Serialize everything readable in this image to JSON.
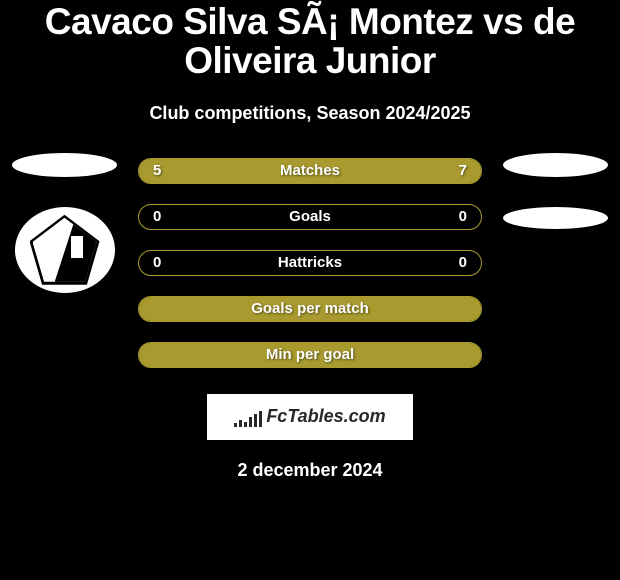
{
  "title": "Cavaco Silva SÃ¡ Montez vs de Oliveira Junior",
  "subtitle": "Club competitions, Season 2024/2025",
  "accent": "#a89a2e",
  "rows": [
    {
      "label": "Matches",
      "left": "5",
      "right": "7",
      "left_pct": 41.7,
      "right_pct": 58.3,
      "show_values": true
    },
    {
      "label": "Goals",
      "left": "0",
      "right": "0",
      "left_pct": 0,
      "right_pct": 0,
      "show_values": true
    },
    {
      "label": "Hattricks",
      "left": "0",
      "right": "0",
      "left_pct": 0,
      "right_pct": 0,
      "show_values": true
    },
    {
      "label": "Goals per match",
      "left": "",
      "right": "",
      "left_pct": 100,
      "right_pct": 0,
      "show_values": false
    },
    {
      "label": "Min per goal",
      "left": "",
      "right": "",
      "left_pct": 100,
      "right_pct": 0,
      "show_values": false
    }
  ],
  "footer_logo": "FcTables.com",
  "date": "2 december 2024"
}
